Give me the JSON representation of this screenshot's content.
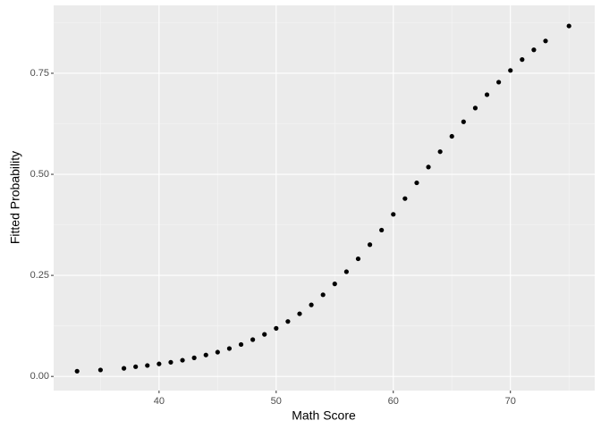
{
  "chart_data": {
    "type": "scatter",
    "x_label": "Math Score",
    "y_label": "Fitted Probability",
    "x": [
      33,
      35,
      37,
      38,
      39,
      40,
      41,
      42,
      43,
      44,
      45,
      46,
      47,
      48,
      49,
      50,
      51,
      52,
      53,
      54,
      55,
      56,
      57,
      58,
      59,
      60,
      61,
      62,
      63,
      64,
      65,
      66,
      67,
      68,
      69,
      70,
      71,
      72,
      73,
      75
    ],
    "values": [
      0.013,
      0.016,
      0.02,
      0.024,
      0.027,
      0.031,
      0.035,
      0.04,
      0.046,
      0.053,
      0.06,
      0.069,
      0.079,
      0.091,
      0.104,
      0.119,
      0.136,
      0.155,
      0.177,
      0.202,
      0.229,
      0.259,
      0.291,
      0.326,
      0.362,
      0.401,
      0.44,
      0.479,
      0.518,
      0.556,
      0.594,
      0.63,
      0.664,
      0.697,
      0.728,
      0.757,
      0.784,
      0.808,
      0.83,
      0.867
    ],
    "color": "#000000",
    "xlim": [
      31,
      77.2
    ],
    "xticks": [
      40,
      50,
      60,
      70
    ],
    "ylim": [
      -0.035,
      0.918
    ],
    "yticks": [
      {
        "value": 0,
        "label": "0.00"
      },
      {
        "value": 0.25,
        "label": "0.25"
      },
      {
        "value": 0.5,
        "label": "0.50"
      },
      {
        "value": 0.75,
        "label": "0.75"
      }
    ],
    "grid": true
  }
}
